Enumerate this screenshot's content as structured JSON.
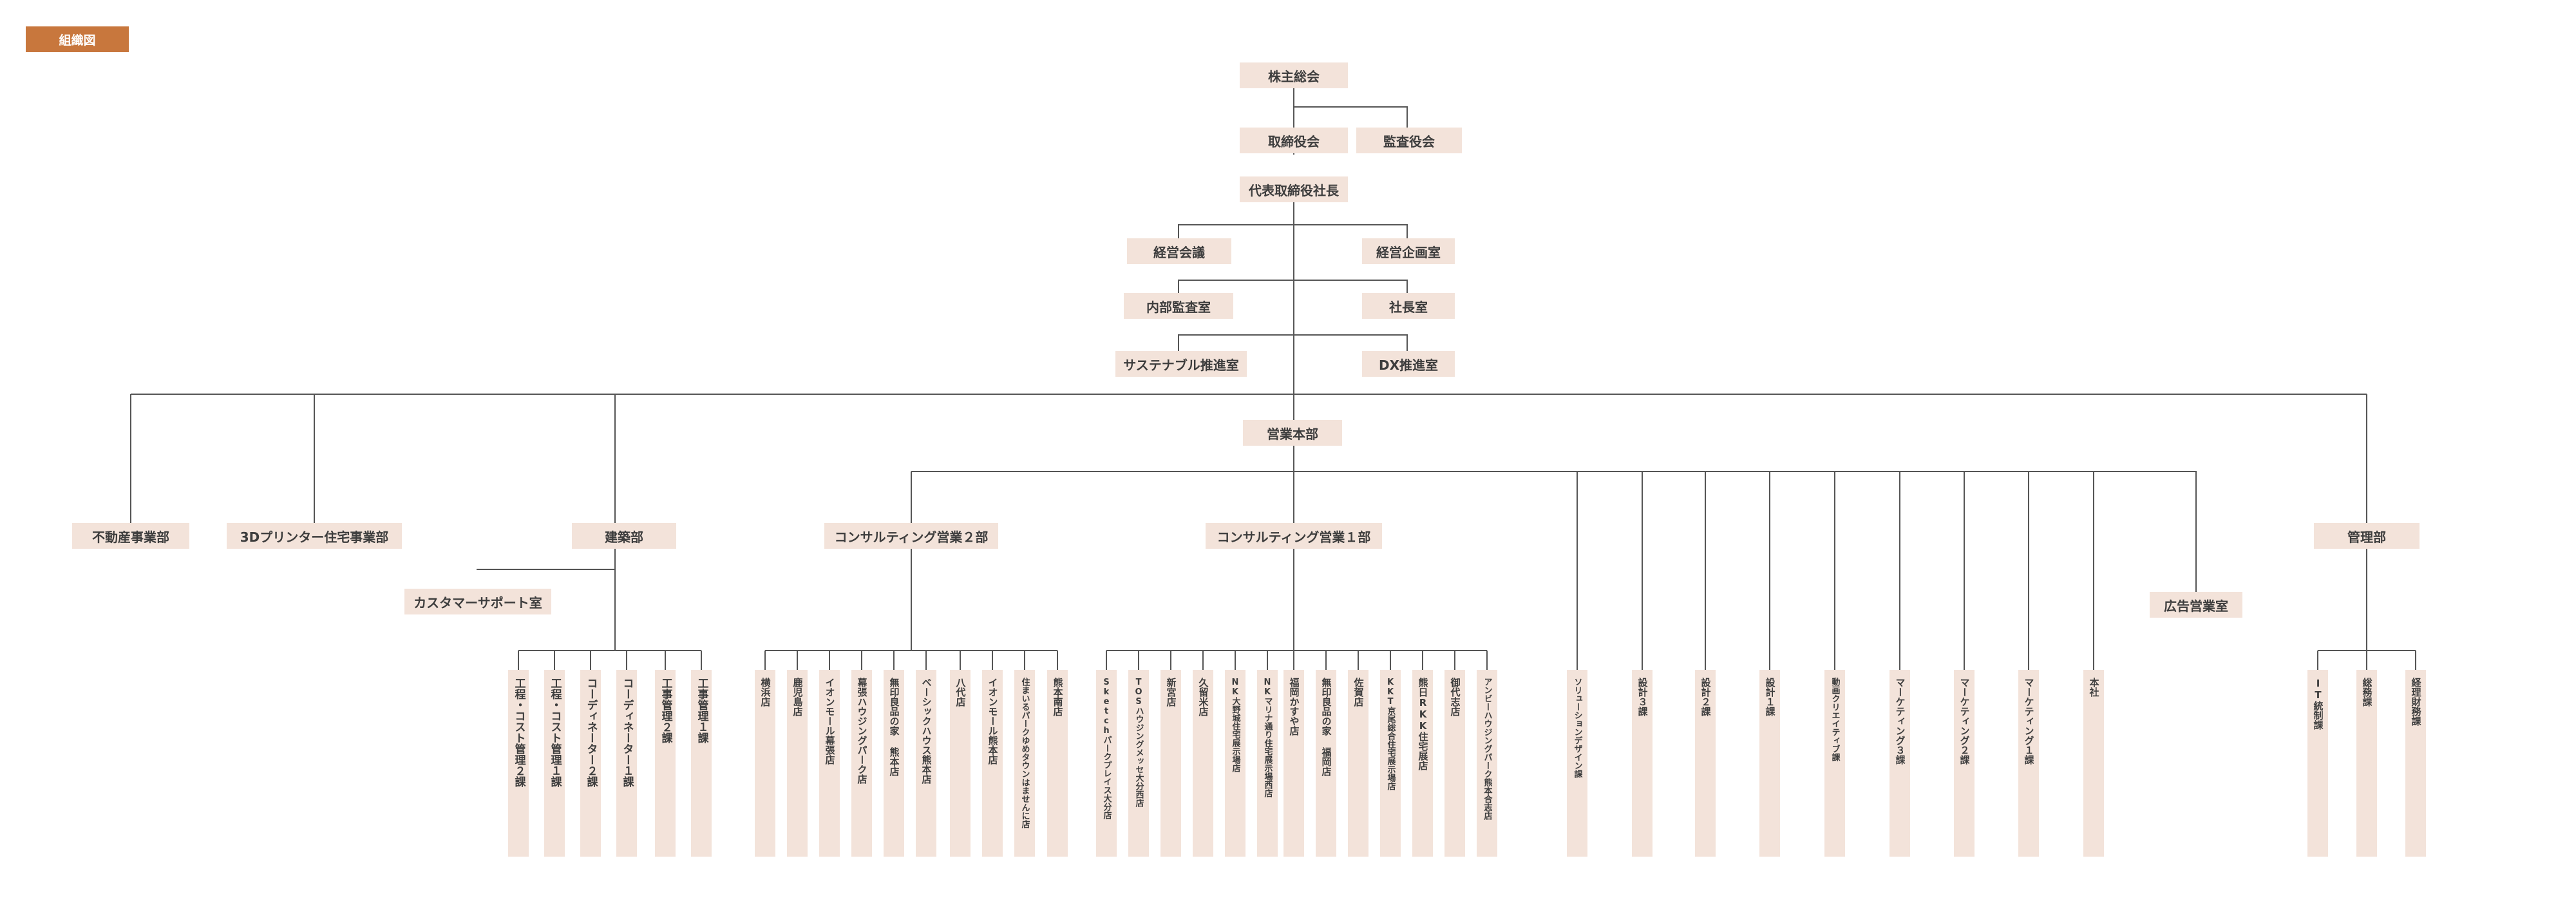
{
  "title": "組織図",
  "top": {
    "shareholders": "株主総会",
    "board": "取締役会",
    "audit_board": "監査役会",
    "president": "代表取締役社長",
    "management_meeting": "経営会議",
    "planning_office": "経営企画室",
    "internal_audit": "内部監査室",
    "president_office": "社長室",
    "sustainability": "サステナブル推進室",
    "dx": "DX推進室"
  },
  "departments": {
    "real_estate": "不動産事業部",
    "printer3d": "3Dプリンター住宅事業部",
    "architecture": "建築部",
    "sales_hq": "営業本部",
    "management": "管理部",
    "customer_support": "カスタマーサポート室",
    "consulting2": "コンサルティング営業２部",
    "consulting1": "コンサルティング営業１部",
    "ad_sales": "広告営業室"
  },
  "architecture_sections": [
    "工程・コスト管理２課",
    "工程・コスト管理１課",
    "コーディネーター２課",
    "コーディネーター１課",
    "工事管理２課",
    "工事管理１課"
  ],
  "consulting2_branches": [
    "横浜店",
    "鹿児島店",
    "イオンモール幕張店",
    "幕張ハウジングパーク店",
    "無印良品の家 熊本店",
    "ベーシックハウス熊本店",
    "八代店",
    "イオンモール熊本店",
    "住まいるパークゆめタウンはませんに店",
    "熊本南店"
  ],
  "consulting1_branches": [
    "Sketchパークプレイス大分店",
    "TOSハウジングメッセ大分西店",
    "新宮店",
    "久留米店",
    "NK大野城住宅展示場店",
    "NKマリナ通り住宅展示場西店",
    "福岡かすや店",
    "無印良品の家 福岡店",
    "佐賀店",
    "KKT京尾総合住宅展示場店",
    "熊日RKK住宅展店",
    "御代志店",
    "アンビーハウジングパーク熊本合志店"
  ],
  "sales_sections": [
    "ソリューションデザイン課",
    "設計３課",
    "設計２課",
    "設計１課",
    "動画クリエイティブ課",
    "マーケティング３課",
    "マーケティング２課",
    "マーケティング１課",
    "本社"
  ],
  "management_sections": [
    "IT統制課",
    "総務課",
    "経理財務課"
  ]
}
